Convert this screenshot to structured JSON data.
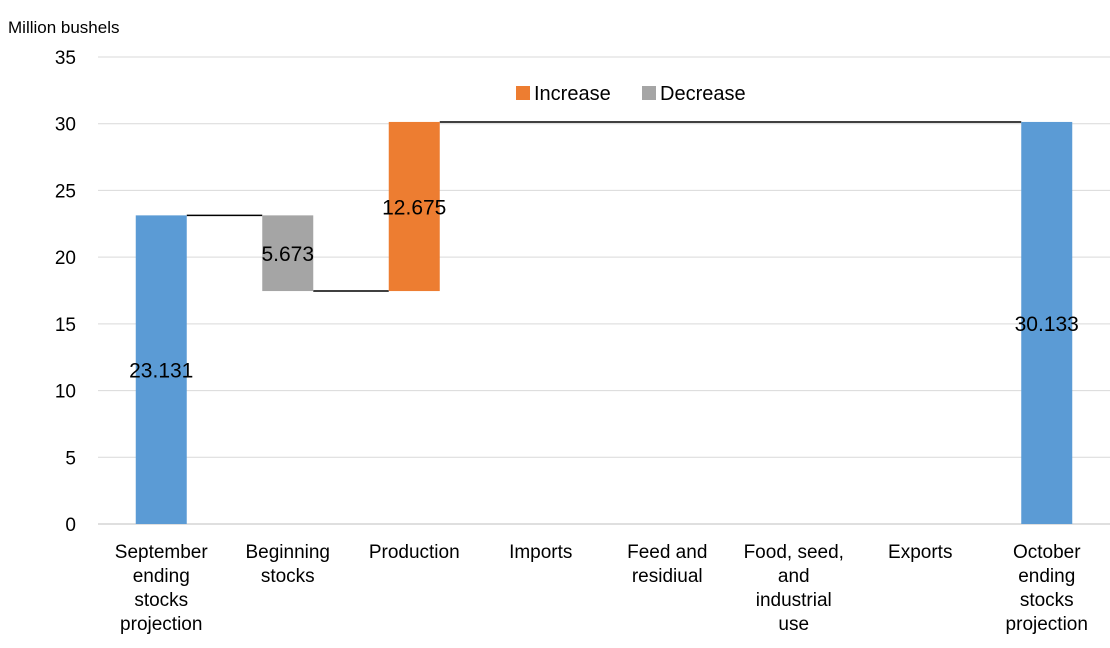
{
  "chart_data": {
    "type": "bar",
    "variant": "waterfall",
    "ylabel": "Million bushels",
    "ylim": [
      0,
      35
    ],
    "yticks": [
      "0",
      "5",
      "10",
      "15",
      "20",
      "25",
      "30",
      "35"
    ],
    "grid": true,
    "legend_position": "top-center",
    "legend": [
      {
        "label": "Increase",
        "color": "#ED7D31"
      },
      {
        "label": "Decrease",
        "color": "#A5A5A5"
      }
    ],
    "categories": [
      [
        "September",
        "ending",
        "stocks",
        "projection"
      ],
      [
        "Beginning",
        "stocks"
      ],
      [
        "Production"
      ],
      [
        "Imports"
      ],
      [
        "Feed and",
        "residiual"
      ],
      [
        "Food, seed,",
        "and",
        "industrial",
        "use"
      ],
      [
        "Exports"
      ],
      [
        "October",
        "ending",
        "stocks",
        "projection"
      ]
    ],
    "bars": [
      {
        "kind": "total",
        "start": 0,
        "end": 23.131,
        "label": "23.131",
        "color": "#5B9BD5"
      },
      {
        "kind": "decrease",
        "start": 23.131,
        "end": 17.458,
        "label": "5.673",
        "color": "#A5A5A5"
      },
      {
        "kind": "increase",
        "start": 17.458,
        "end": 30.133,
        "label": "12.675",
        "color": "#ED7D31"
      },
      {
        "kind": "none",
        "start": 30.133,
        "end": 30.133,
        "label": "",
        "color": ""
      },
      {
        "kind": "none",
        "start": 30.133,
        "end": 30.133,
        "label": "",
        "color": ""
      },
      {
        "kind": "none",
        "start": 30.133,
        "end": 30.133,
        "label": "",
        "color": ""
      },
      {
        "kind": "none",
        "start": 30.133,
        "end": 30.133,
        "label": "",
        "color": ""
      },
      {
        "kind": "total",
        "start": 0,
        "end": 30.133,
        "label": "30.133",
        "color": "#5B9BD5"
      }
    ]
  }
}
